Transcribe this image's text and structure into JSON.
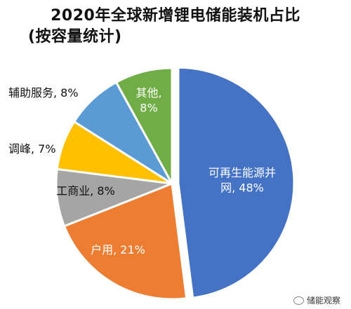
{
  "title_line1": "2020年全球新增锂电储能装机占比",
  "title_line2": "(按容量统计)",
  "chart_data": {
    "type": "pie",
    "title": "2020年全球新增锂电储能装机占比 (按容量统计)",
    "unit": "%",
    "slices": [
      {
        "name": "可再生能源并网",
        "value": 48,
        "label_lines": [
          "可再生能源并",
          "网, 48%"
        ],
        "color": "#4472C4"
      },
      {
        "name": "户用",
        "value": 21,
        "label_lines": [
          "户用, 21%"
        ],
        "color": "#ED7D31"
      },
      {
        "name": "工商业",
        "value": 8,
        "label_lines": [
          "工商业, 8%"
        ],
        "color": "#A5A5A5"
      },
      {
        "name": "调峰",
        "value": 7,
        "label_lines": [
          "调峰, 7%"
        ],
        "color": "#FFC000"
      },
      {
        "name": "辅助服务",
        "value": 8,
        "label_lines": [
          "辅助服务, 8%"
        ],
        "color": "#5B9BD5"
      },
      {
        "name": "其他",
        "value": 8,
        "label_lines": [
          "其他,",
          "8%"
        ],
        "color": "#70AD47"
      }
    ]
  },
  "watermark": "储能观察",
  "watermark_icon": "wechat-bubble-icon"
}
